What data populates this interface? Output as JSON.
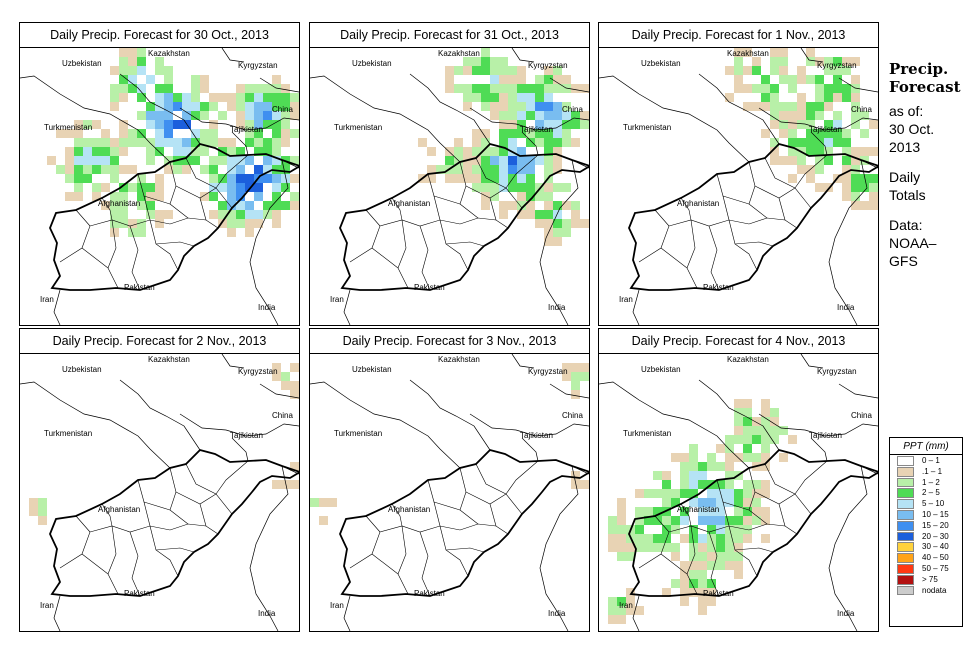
{
  "panels": [
    {
      "title": "Daily Precip. Forecast for  30 Oct., 2013",
      "date": "30 Oct. 2013",
      "precip_level": "heavy"
    },
    {
      "title": "Daily Precip. Forecast for  31 Oct., 2013",
      "date": "31 Oct. 2013",
      "precip_level": "moderate"
    },
    {
      "title": "Daily Precip. Forecast for  1 Nov., 2013",
      "date": "1 Nov. 2013",
      "precip_level": "light"
    },
    {
      "title": "Daily Precip. Forecast for  2 Nov., 2013",
      "date": "2 Nov. 2013",
      "precip_level": "trace"
    },
    {
      "title": "Daily Precip. Forecast for  3 Nov., 2013",
      "date": "3 Nov. 2013",
      "precip_level": "trace"
    },
    {
      "title": "Daily Precip. Forecast for  4 Nov., 2013",
      "date": "4 Nov. 2013",
      "precip_level": "moderate-west"
    }
  ],
  "countries": {
    "uzbekistan": "Uzbekistan",
    "kazakhstan": "Kazakhstan",
    "kyrgyzstan": "Kyrgyzstan",
    "china": "China",
    "turkmenistan": "Turkmenistan",
    "tajikistan": "Tajikistan",
    "afghanistan": "Afghanistan",
    "iran": "Iran",
    "pakistan": "Pakistan",
    "india": "India"
  },
  "sidebar": {
    "title_line1": "Precip.",
    "title_line2": "Forecast",
    "asof_line1": "as of:",
    "asof_line2": "30 Oct.",
    "asof_line3": "2013",
    "daily_line1": "Daily",
    "daily_line2": "Totals",
    "data_line1": "Data:",
    "data_line2": "NOAA–",
    "data_line3": "GFS"
  },
  "legend": {
    "title": "PPT (mm)",
    "items": [
      {
        "label": "0 – 1",
        "color": "#ffffff"
      },
      {
        "label": ".1 – 1",
        "color": "#e8d3b4"
      },
      {
        "label": "1 – 2",
        "color": "#b8f0a8"
      },
      {
        "label": "2 – 5",
        "color": "#4fdc55"
      },
      {
        "label": "5 – 10",
        "color": "#b5e3f5"
      },
      {
        "label": "10 – 15",
        "color": "#79bdf0"
      },
      {
        "label": "15 – 20",
        "color": "#3f8ff0"
      },
      {
        "label": "20 – 30",
        "color": "#1c5fdc"
      },
      {
        "label": "30 – 40",
        "color": "#ffd23c"
      },
      {
        "label": "40 – 50",
        "color": "#ffa318"
      },
      {
        "label": "50 – 75",
        "color": "#ff3812"
      },
      {
        "label": "> 75",
        "color": "#b31010"
      },
      {
        "label": "nodata",
        "color": "#cccccc"
      }
    ]
  }
}
